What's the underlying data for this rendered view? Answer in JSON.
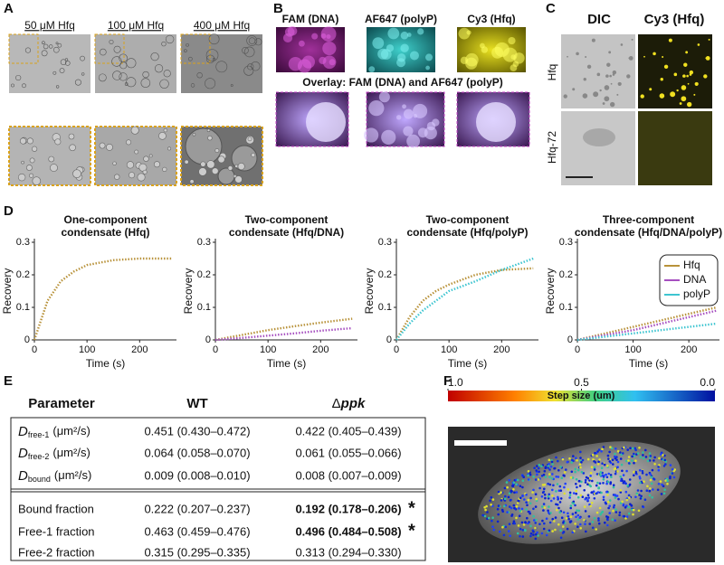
{
  "panels": {
    "labels": [
      "A",
      "B",
      "C",
      "D",
      "E",
      "F"
    ]
  },
  "panel_a": {
    "conditions": [
      "50 μM Hfq",
      "100 μM Hfq",
      "400 μM Hfq"
    ]
  },
  "panel_b": {
    "channels": [
      "FAM (DNA)",
      "AF647 (polyP)",
      "Cy3 (Hfq)"
    ],
    "overlay_title": "Overlay: FAM (DNA) and AF647 (polyP)"
  },
  "panel_c": {
    "columns": [
      "DIC",
      "Cy3 (Hfq)"
    ],
    "rows": [
      "Hfq",
      "Hfq-72"
    ]
  },
  "chart_data": [
    {
      "type": "line",
      "title": [
        "One-component",
        "condensate (Hfq)"
      ],
      "xlabel": "Time (s)",
      "ylabel": "Recovery",
      "xlim": [
        0,
        270
      ],
      "xticks": [
        0,
        100,
        200
      ],
      "ylim": [
        0,
        0.3
      ],
      "yticks": [
        0,
        0.1,
        0.2,
        0.3
      ],
      "legend": false,
      "x": [
        0,
        25,
        50,
        75,
        100,
        150,
        200,
        260
      ],
      "series": [
        {
          "name": "Hfq",
          "color": "#b8923a",
          "values": [
            0,
            0.12,
            0.18,
            0.21,
            0.23,
            0.245,
            0.25,
            0.25
          ]
        }
      ]
    },
    {
      "type": "line",
      "title": [
        "Two-component",
        "condensate (Hfq/DNA)"
      ],
      "xlabel": "Time (s)",
      "ylabel": "Recovery",
      "xlim": [
        0,
        270
      ],
      "xticks": [
        0,
        100,
        200
      ],
      "ylim": [
        0,
        0.3
      ],
      "yticks": [
        0,
        0.1,
        0.2,
        0.3
      ],
      "legend": false,
      "x": [
        0,
        50,
        100,
        150,
        200,
        260
      ],
      "series": [
        {
          "name": "Hfq",
          "color": "#b8923a",
          "values": [
            0,
            0.015,
            0.03,
            0.042,
            0.053,
            0.065
          ]
        },
        {
          "name": "DNA",
          "color": "#a64fc0",
          "values": [
            0,
            0.006,
            0.013,
            0.02,
            0.028,
            0.036
          ]
        }
      ]
    },
    {
      "type": "line",
      "title": [
        "Two-component",
        "condensate (Hfq/polyP)"
      ],
      "xlabel": "Time (s)",
      "ylabel": "Recovery",
      "xlim": [
        0,
        270
      ],
      "xticks": [
        0,
        100,
        200
      ],
      "ylim": [
        0,
        0.3
      ],
      "yticks": [
        0,
        0.1,
        0.2,
        0.3
      ],
      "legend": false,
      "x": [
        0,
        25,
        50,
        75,
        100,
        150,
        200,
        260
      ],
      "series": [
        {
          "name": "Hfq",
          "color": "#b8923a",
          "values": [
            0,
            0.07,
            0.12,
            0.15,
            0.17,
            0.2,
            0.215,
            0.22
          ]
        },
        {
          "name": "polyP",
          "color": "#3ec5d1",
          "values": [
            0,
            0.05,
            0.09,
            0.12,
            0.15,
            0.18,
            0.215,
            0.25
          ]
        }
      ]
    },
    {
      "type": "line",
      "title": [
        "Three-component",
        "condensate (Hfq/DNA/polyP)"
      ],
      "xlabel": "Time (s)",
      "ylabel": "Recovery",
      "xlim": [
        0,
        255
      ],
      "xticks": [
        0,
        100,
        200
      ],
      "ylim": [
        0,
        0.3
      ],
      "yticks": [
        0,
        0.1,
        0.2,
        0.3
      ],
      "legend": true,
      "x": [
        0,
        50,
        100,
        150,
        200,
        250
      ],
      "series": [
        {
          "name": "Hfq",
          "color": "#b8923a",
          "values": [
            0,
            0.02,
            0.04,
            0.06,
            0.08,
            0.1
          ]
        },
        {
          "name": "DNA",
          "color": "#a64fc0",
          "values": [
            0,
            0.015,
            0.03,
            0.05,
            0.07,
            0.09
          ]
        },
        {
          "name": "polyP",
          "color": "#3ec5d1",
          "values": [
            0,
            0.01,
            0.02,
            0.03,
            0.04,
            0.05
          ]
        }
      ]
    }
  ],
  "table": {
    "header": [
      "Parameter",
      "WT",
      {
        "prefix": "Δ",
        "italic": "ppk"
      }
    ],
    "rows": [
      [
        {
          "symbol": "D",
          "sub": "free-1",
          "unit": "(μm²/s)"
        },
        "0.451 (0.430–0.472)",
        "0.422 (0.405–0.439)"
      ],
      [
        {
          "symbol": "D",
          "sub": "free-2",
          "unit": "(μm²/s)"
        },
        "0.064 (0.058–0.070)",
        "0.061 (0.055–0.066)"
      ],
      [
        {
          "symbol": "D",
          "sub": "bound",
          "unit": "(μm²/s)"
        },
        "0.009 (0.008–0.010)",
        "0.008 (0.007–0.009)"
      ],
      [
        "Bound fraction",
        "0.222 (0.207–0.237)",
        {
          "text": "0.192 (0.178–0.206)",
          "mark": "*"
        }
      ],
      [
        "Free-1 fraction",
        "0.463 (0.459–0.476)",
        {
          "text": "0.496 (0.484–0.508)",
          "mark": "*"
        }
      ],
      [
        "Free-2 fraction",
        "0.315 (0.295–0.335)",
        "0.313 (0.294–0.330)"
      ]
    ]
  },
  "panel_f": {
    "colorbar_label": "Step size (um)",
    "colorbar_ticks": [
      {
        "value": 1,
        "label": "1.0"
      },
      {
        "value": 0.5,
        "label": "0.5"
      },
      {
        "value": 0,
        "label": "0.0"
      }
    ]
  }
}
